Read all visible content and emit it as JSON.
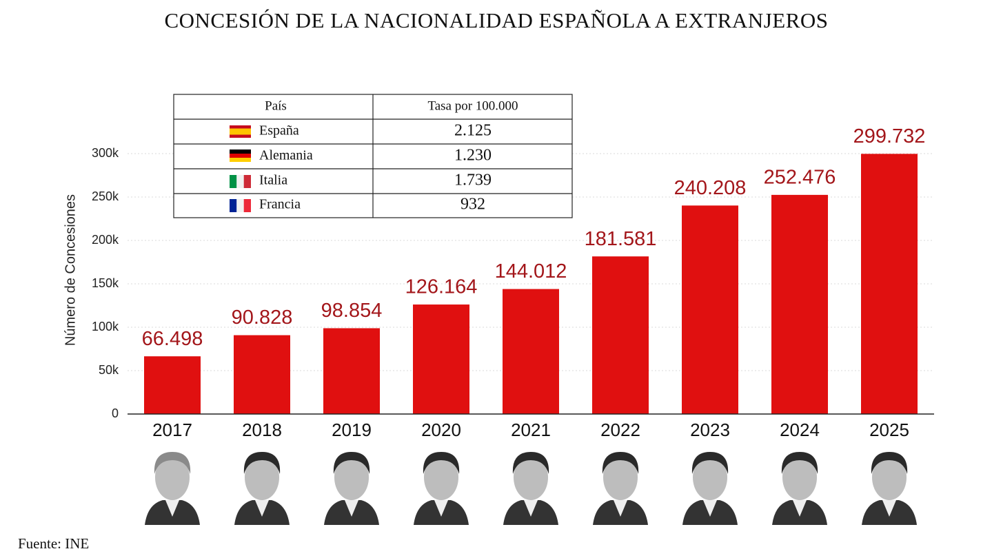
{
  "chart_data": {
    "type": "bar",
    "title": "CONCESIÓN DE LA NACIONALIDAD ESPAÑOLA A EXTRANJEROS",
    "y_label": "Número de Concesiones",
    "categories": [
      "2017",
      "2018",
      "2019",
      "2020",
      "2021",
      "2022",
      "2023",
      "2024",
      "2025"
    ],
    "values": [
      66498,
      90828,
      98854,
      126164,
      144012,
      181581,
      240208,
      252476,
      299732
    ],
    "value_labels": [
      "66.498",
      "90.828",
      "98.854",
      "126.164",
      "144.012",
      "181.581",
      "240.208",
      "252.476",
      "299.732"
    ],
    "color": "#e01010",
    "label_color": "#a3161a",
    "ylim": [
      0,
      300000
    ],
    "yticks": [
      0,
      {
        "value": 50000,
        "label": "50k"
      },
      {
        "value": 100000,
        "label": "100k"
      },
      {
        "value": 150000,
        "label": "150k"
      },
      {
        "value": 200000,
        "label": "200k"
      },
      {
        "value": 250000,
        "label": "250k"
      },
      {
        "value": 300000,
        "label": "300k"
      }
    ],
    "grid": true,
    "table": {
      "header": [
        "País",
        "Tasa por 100.000"
      ],
      "rows": [
        [
          "España",
          "2.125"
        ],
        [
          "Alemania",
          "1.230"
        ],
        [
          "Italia",
          "1.739"
        ],
        [
          "Francia",
          "932"
        ]
      ]
    },
    "source": "Fuente: INE"
  }
}
